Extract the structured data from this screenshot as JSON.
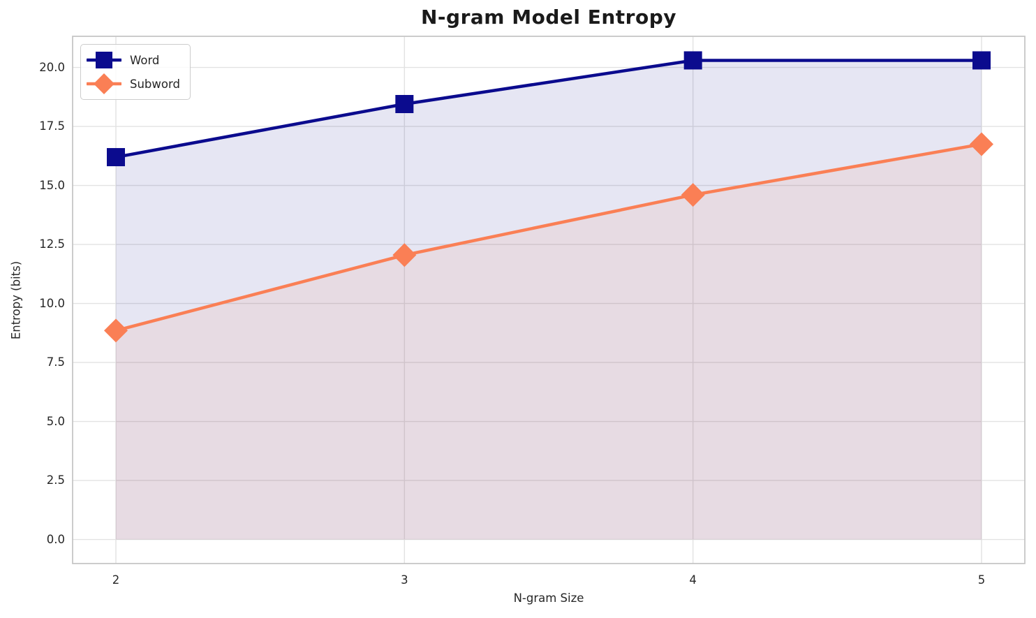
{
  "chart_data": {
    "type": "line",
    "title": "N-gram Model Entropy",
    "xlabel": "N-gram Size",
    "ylabel": "Entropy (bits)",
    "x": [
      2,
      3,
      4,
      5
    ],
    "xtick_labels": [
      "2",
      "3",
      "4",
      "5"
    ],
    "ytick_values": [
      0,
      2.5,
      5,
      7.5,
      10,
      12.5,
      15,
      17.5,
      20
    ],
    "ytick_labels": [
      "0.0",
      "2.5",
      "5.0",
      "7.5",
      "10.0",
      "12.5",
      "15.0",
      "17.5",
      "20.0"
    ],
    "xlim": [
      1.85,
      5.15
    ],
    "ylim": [
      -1.02,
      21.32
    ],
    "grid": true,
    "legend_position": "upper left",
    "series": [
      {
        "name": "Word",
        "color": "#0b0b8e",
        "marker": "square",
        "values": [
          16.2,
          18.45,
          20.3,
          20.3
        ],
        "area_fill": true,
        "fill_opacity": 0.1
      },
      {
        "name": "Subword",
        "color": "#fa7f55",
        "marker": "diamond",
        "values": [
          8.85,
          12.05,
          14.6,
          16.75
        ],
        "area_fill": true,
        "fill_opacity": 0.1
      }
    ],
    "theme": {
      "grid_color": "#e2e2e2",
      "spine_color": "#c6c6c6",
      "text_color": "#262626",
      "title_color": "#1a1a1a",
      "background": "#ffffff"
    }
  }
}
